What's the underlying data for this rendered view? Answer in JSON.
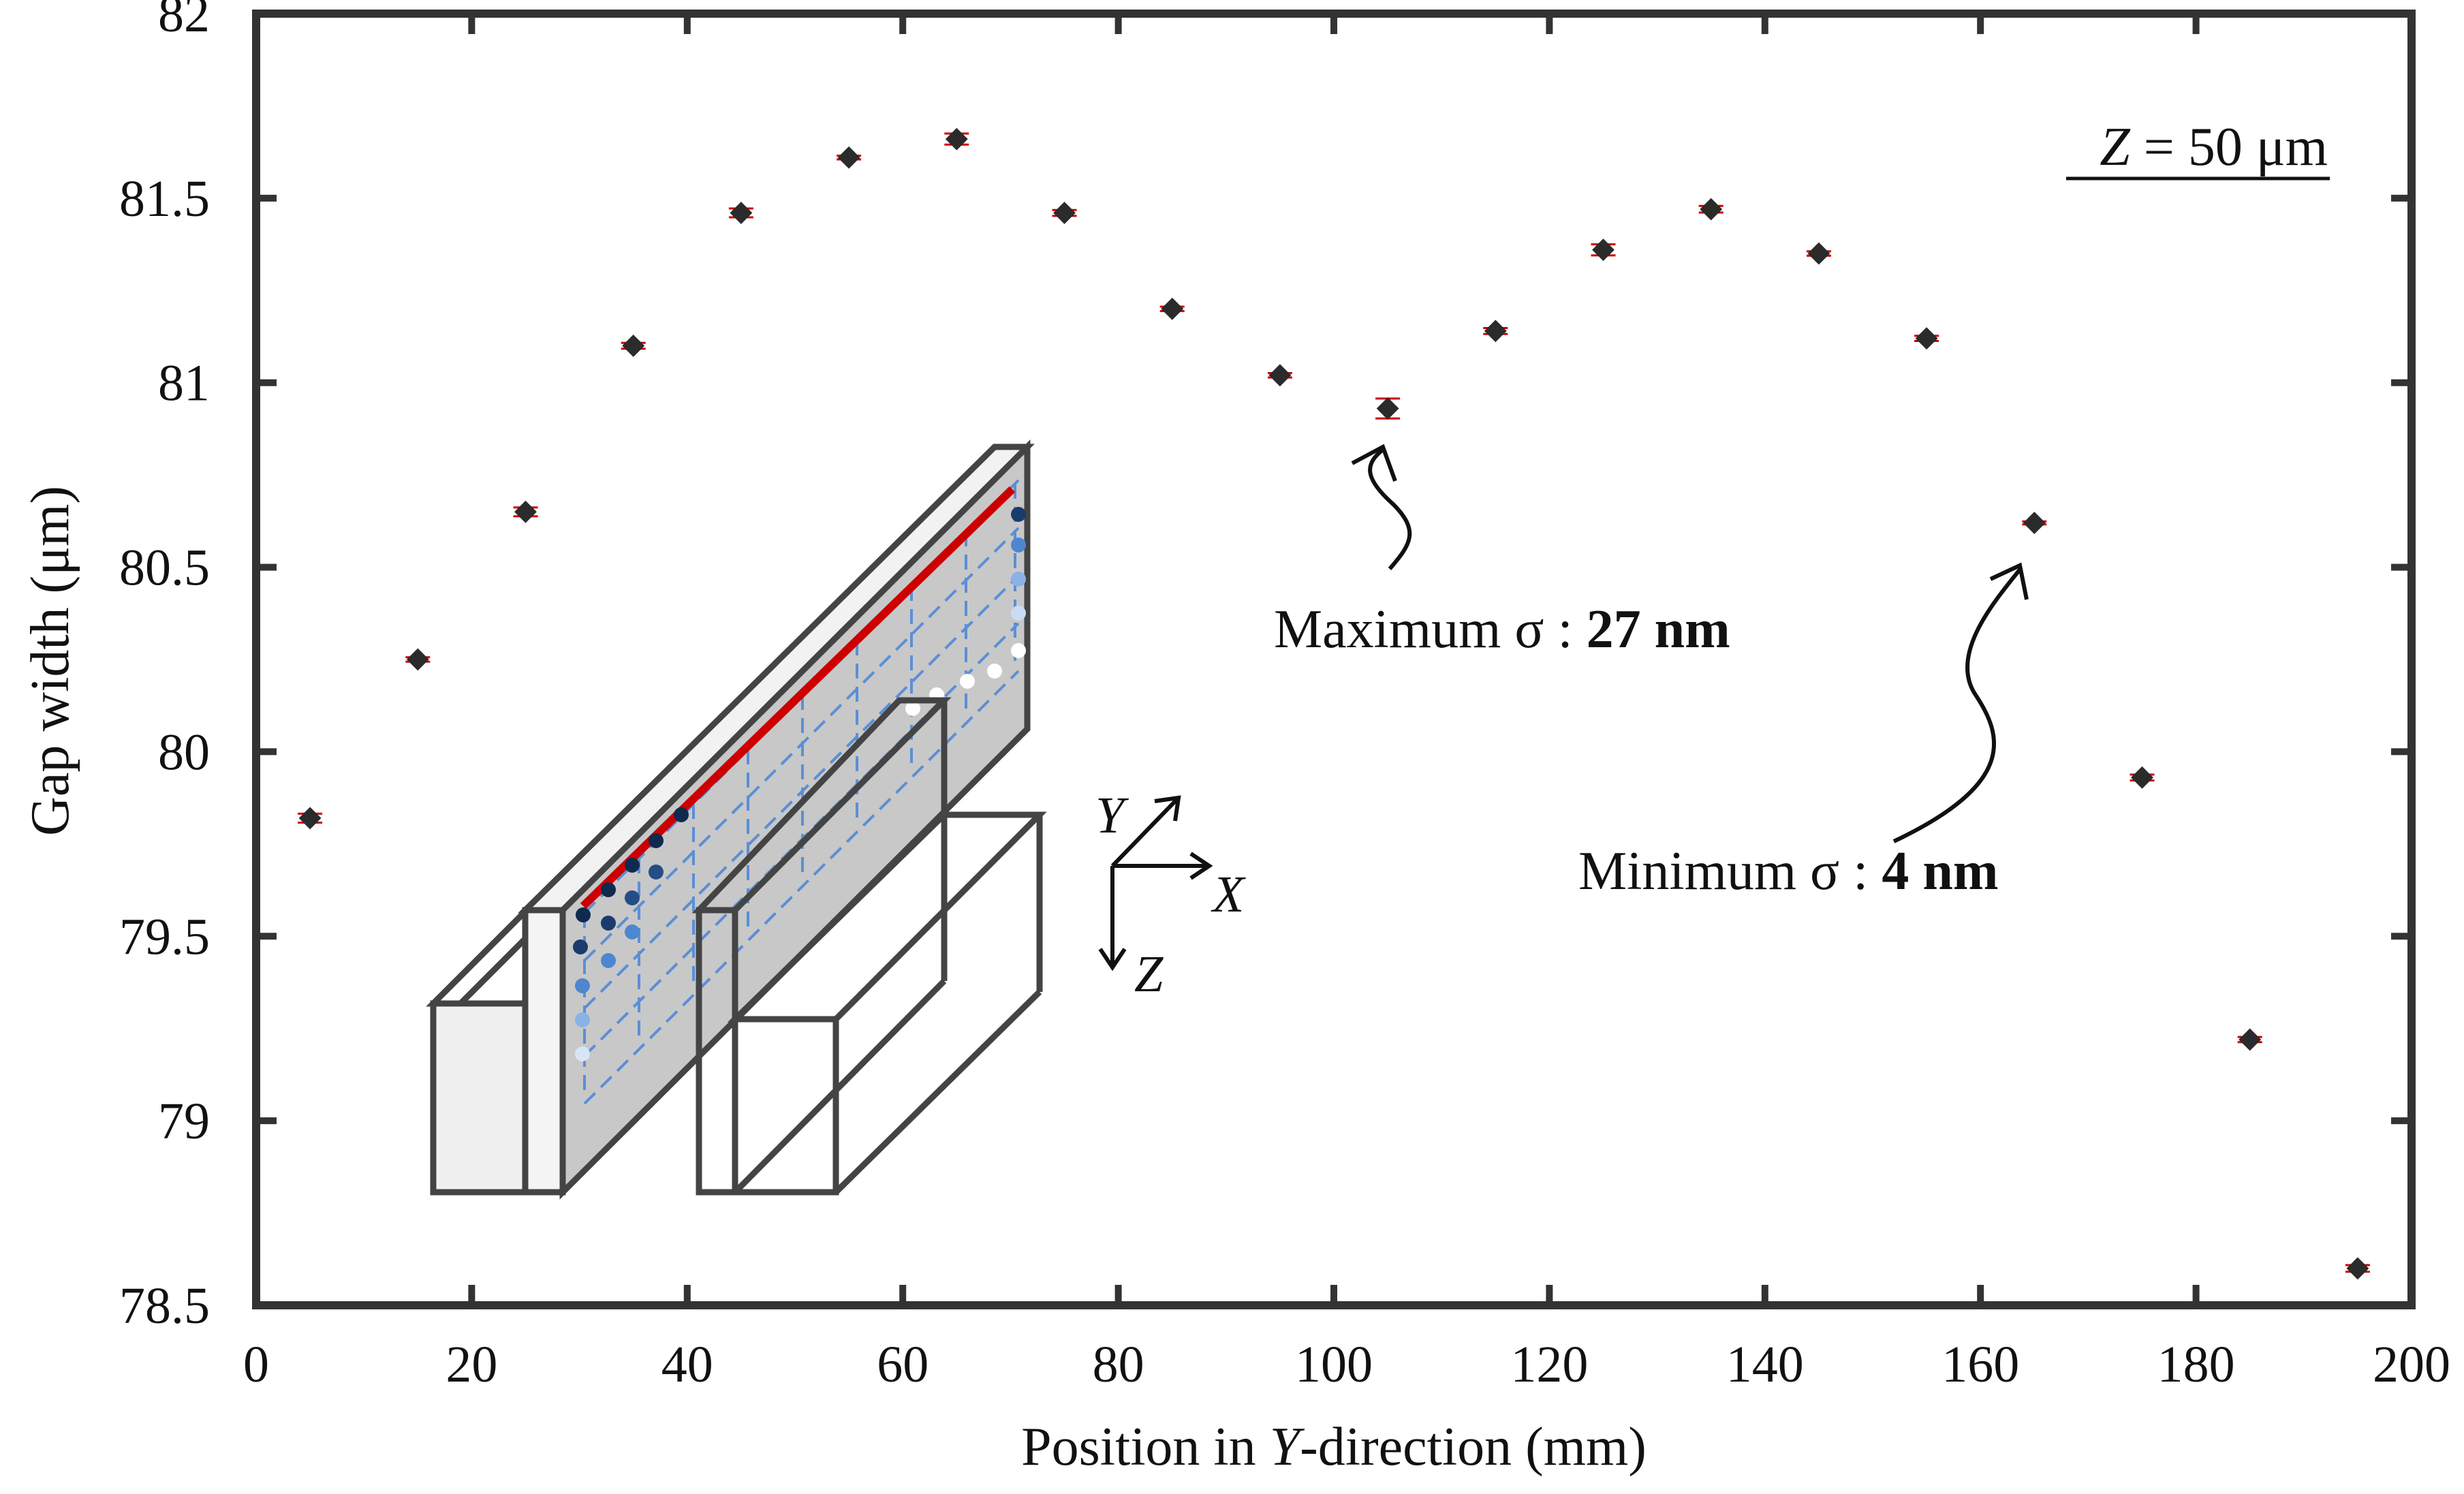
{
  "chart_data": {
    "type": "scatter",
    "title": "",
    "xlabel": {
      "main": "Position in ",
      "italic": "Y",
      "rest": "-direction (mm)"
    },
    "ylabel": "Gap width (μm)",
    "xlim": [
      0,
      200
    ],
    "ylim": [
      78.5,
      82
    ],
    "xticks": [
      0,
      20,
      40,
      60,
      80,
      100,
      120,
      140,
      160,
      180,
      200
    ],
    "yticks": [
      78.5,
      79,
      79.5,
      80,
      80.5,
      81,
      81.5,
      82
    ],
    "ytick_labels": [
      "78.5",
      "79",
      "79.5",
      "80",
      "80.5",
      "81",
      "81.5",
      "82"
    ],
    "grid": false,
    "series": [
      {
        "name": "Gap width",
        "marker": "diamond",
        "color": "#2b2b2b",
        "errorbar_color": "#cc0000",
        "x": [
          5,
          15,
          25,
          35,
          45,
          55,
          65,
          75,
          85,
          95,
          105,
          115,
          125,
          135,
          145,
          155,
          165,
          175,
          185,
          195
        ],
        "y": [
          79.82,
          80.25,
          80.65,
          81.1,
          81.46,
          81.61,
          81.66,
          81.46,
          81.2,
          81.02,
          80.93,
          81.14,
          81.36,
          81.47,
          81.35,
          81.12,
          80.62,
          79.93,
          79.22,
          78.6
        ],
        "err": [
          0.012,
          0.006,
          0.012,
          0.008,
          0.012,
          0.005,
          0.015,
          0.008,
          0.006,
          0.006,
          0.027,
          0.008,
          0.015,
          0.009,
          0.006,
          0.007,
          0.004,
          0.008,
          0.007,
          0.009
        ]
      }
    ],
    "annotations": [
      {
        "italic": "Z",
        "text": " = 50 μm",
        "position": "top-right",
        "underline": true
      },
      {
        "text": "Maximum σ : ",
        "bold": "27 nm",
        "points_to_x": 105
      },
      {
        "text": "Minimum σ : ",
        "bold": "4 nm",
        "points_to_x": 165
      }
    ],
    "inset": {
      "description": "3D schematic of measurement setup",
      "axis_labels": [
        "Y",
        "X",
        "Z"
      ]
    }
  }
}
